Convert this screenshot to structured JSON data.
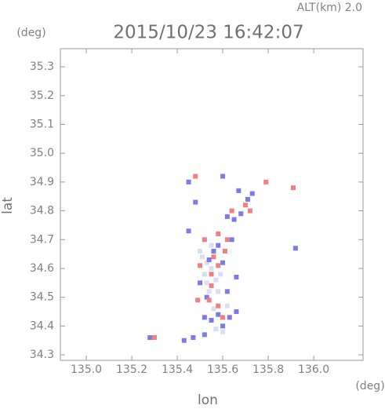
{
  "chart_data": {
    "type": "scatter",
    "title": "2015/10/23 16:42:07",
    "subtitle": "ALT(km) 2.0",
    "x_label": "lon",
    "y_label": "lat",
    "x_unit": "(deg)",
    "y_unit": "(deg)",
    "xlim": [
      134.886,
      136.217
    ],
    "ylim": [
      34.281,
      35.363
    ],
    "xticks": [
      {
        "value": 135,
        "label": "135.0"
      },
      135.2,
      135.4,
      135.6,
      135.8,
      {
        "value": 136,
        "label": "136.0"
      }
    ],
    "yticks": [
      34.3,
      34.4,
      34.5,
      34.6,
      34.7,
      34.8,
      34.9,
      {
        "value": 35,
        "label": "35.0"
      },
      35.1,
      35.2,
      35.3
    ],
    "series": [
      {
        "color": "#dcdcf2",
        "x": [
          135.53,
          135.55,
          135.5,
          135.57,
          135.52,
          135.58,
          135.56,
          135.6,
          135.57,
          135.62,
          135.54,
          135.51,
          135.59,
          135.55,
          135.53
        ],
        "values": [
          34.62,
          34.68,
          34.66,
          34.56,
          34.58,
          34.52,
          34.46,
          34.38,
          34.39,
          34.47,
          34.52,
          34.64,
          34.58,
          34.6,
          34.55
        ]
      },
      {
        "color": "#7a7ae8",
        "x": [
          135.92,
          135.28,
          135.45,
          135.55,
          135.58,
          135.52,
          135.6,
          135.63,
          135.66,
          135.62,
          135.66,
          135.5,
          135.54,
          135.58,
          135.6,
          135.67,
          135.71,
          135.62,
          135.65,
          135.43,
          135.47,
          135.52,
          135.45,
          135.48,
          135.6,
          135.64,
          135.56,
          135.53,
          135.68,
          135.73
        ],
        "values": [
          34.67,
          34.36,
          34.73,
          34.42,
          34.44,
          34.43,
          34.4,
          34.43,
          34.45,
          34.52,
          34.57,
          34.55,
          34.63,
          34.68,
          34.62,
          34.87,
          34.84,
          34.78,
          34.77,
          34.35,
          34.36,
          34.37,
          34.9,
          34.83,
          34.92,
          34.7,
          34.66,
          34.5,
          34.79,
          34.86
        ]
      },
      {
        "color": "#f08080",
        "x": [
          135.54,
          135.58,
          135.6,
          135.49,
          135.55,
          135.58,
          135.61,
          135.52,
          135.58,
          135.64,
          135.7,
          135.72,
          135.91,
          135.79,
          135.3,
          135.55,
          135.48,
          135.62,
          135.56,
          135.5
        ],
        "values": [
          34.49,
          34.47,
          34.43,
          34.49,
          34.58,
          34.61,
          34.66,
          34.7,
          34.72,
          34.8,
          34.82,
          34.8,
          34.88,
          34.9,
          34.36,
          34.54,
          34.92,
          34.7,
          34.64,
          34.61
        ]
      }
    ]
  }
}
